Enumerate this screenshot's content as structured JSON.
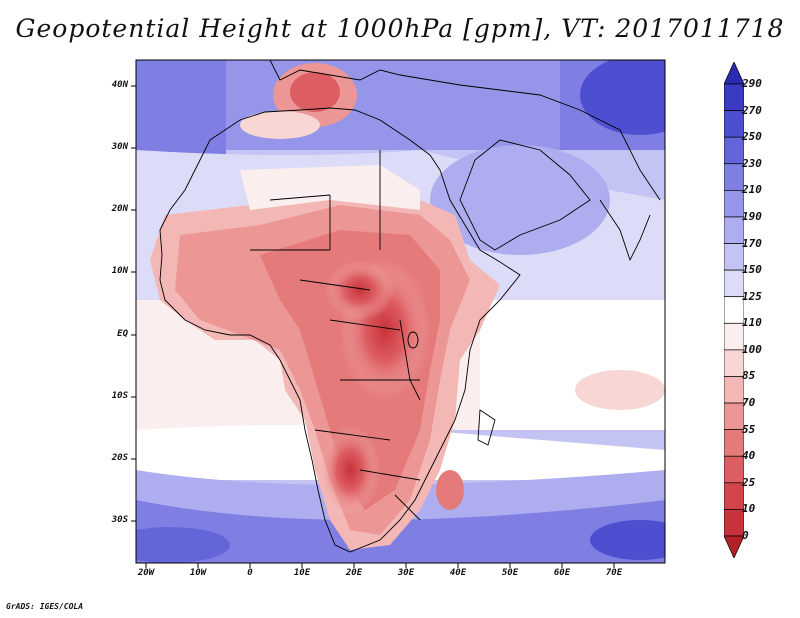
{
  "title": "Geopotential Height at 1000hPa [gpm], VT: 2017011718",
  "credit": "GrADS: IGES/COLA",
  "lat_ticks": [
    "40N",
    "30N",
    "20N",
    "10N",
    "EQ",
    "10S",
    "20S",
    "30S"
  ],
  "lon_ticks": [
    "20W",
    "10W",
    "0",
    "10E",
    "20E",
    "30E",
    "40E",
    "50E",
    "60E",
    "70E"
  ],
  "colorbar": {
    "levels": [
      "0",
      "10",
      "25",
      "40",
      "55",
      "70",
      "85",
      "100",
      "110",
      "125",
      "150",
      "170",
      "190",
      "210",
      "230",
      "250",
      "270",
      "290"
    ],
    "colors": [
      "#b32028",
      "#c8323a",
      "#d3454b",
      "#dd5e62",
      "#e57a7b",
      "#ec9796",
      "#f3b7b5",
      "#f8d6d4",
      "#fbeeee",
      "#ffffff",
      "#dcdcf8",
      "#c4c4f4",
      "#adadef",
      "#9595ea",
      "#7e7ee3",
      "#6565da",
      "#4e4ed1",
      "#3a3ac3",
      "#2b2bb1"
    ]
  }
}
